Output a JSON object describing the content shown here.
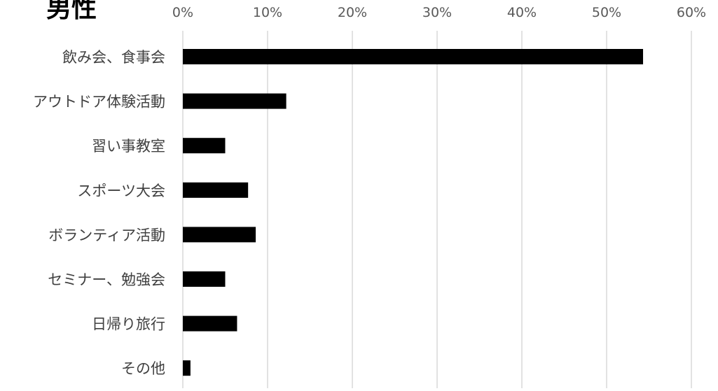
{
  "chart_data": {
    "type": "bar",
    "orientation": "horizontal",
    "title": "男性",
    "categories": [
      "飲み会、食事会",
      "アウトドア体験活動",
      "習い事教室",
      "スポーツ大会",
      "ボランティア活動",
      "セミナー、勉強会",
      "日帰り旅行",
      "その他"
    ],
    "values": [
      54.3,
      12.2,
      5.0,
      7.7,
      8.6,
      5.0,
      6.4,
      0.9
    ],
    "value_unit": "%",
    "xlim": [
      0,
      60
    ],
    "x_ticks": [
      "0%",
      "10%",
      "20%",
      "30%",
      "40%",
      "50%",
      "60%"
    ],
    "grid": "vertical",
    "axis_position": "top",
    "bar_color": "#000000",
    "grid_color": "#d9d9d9"
  }
}
